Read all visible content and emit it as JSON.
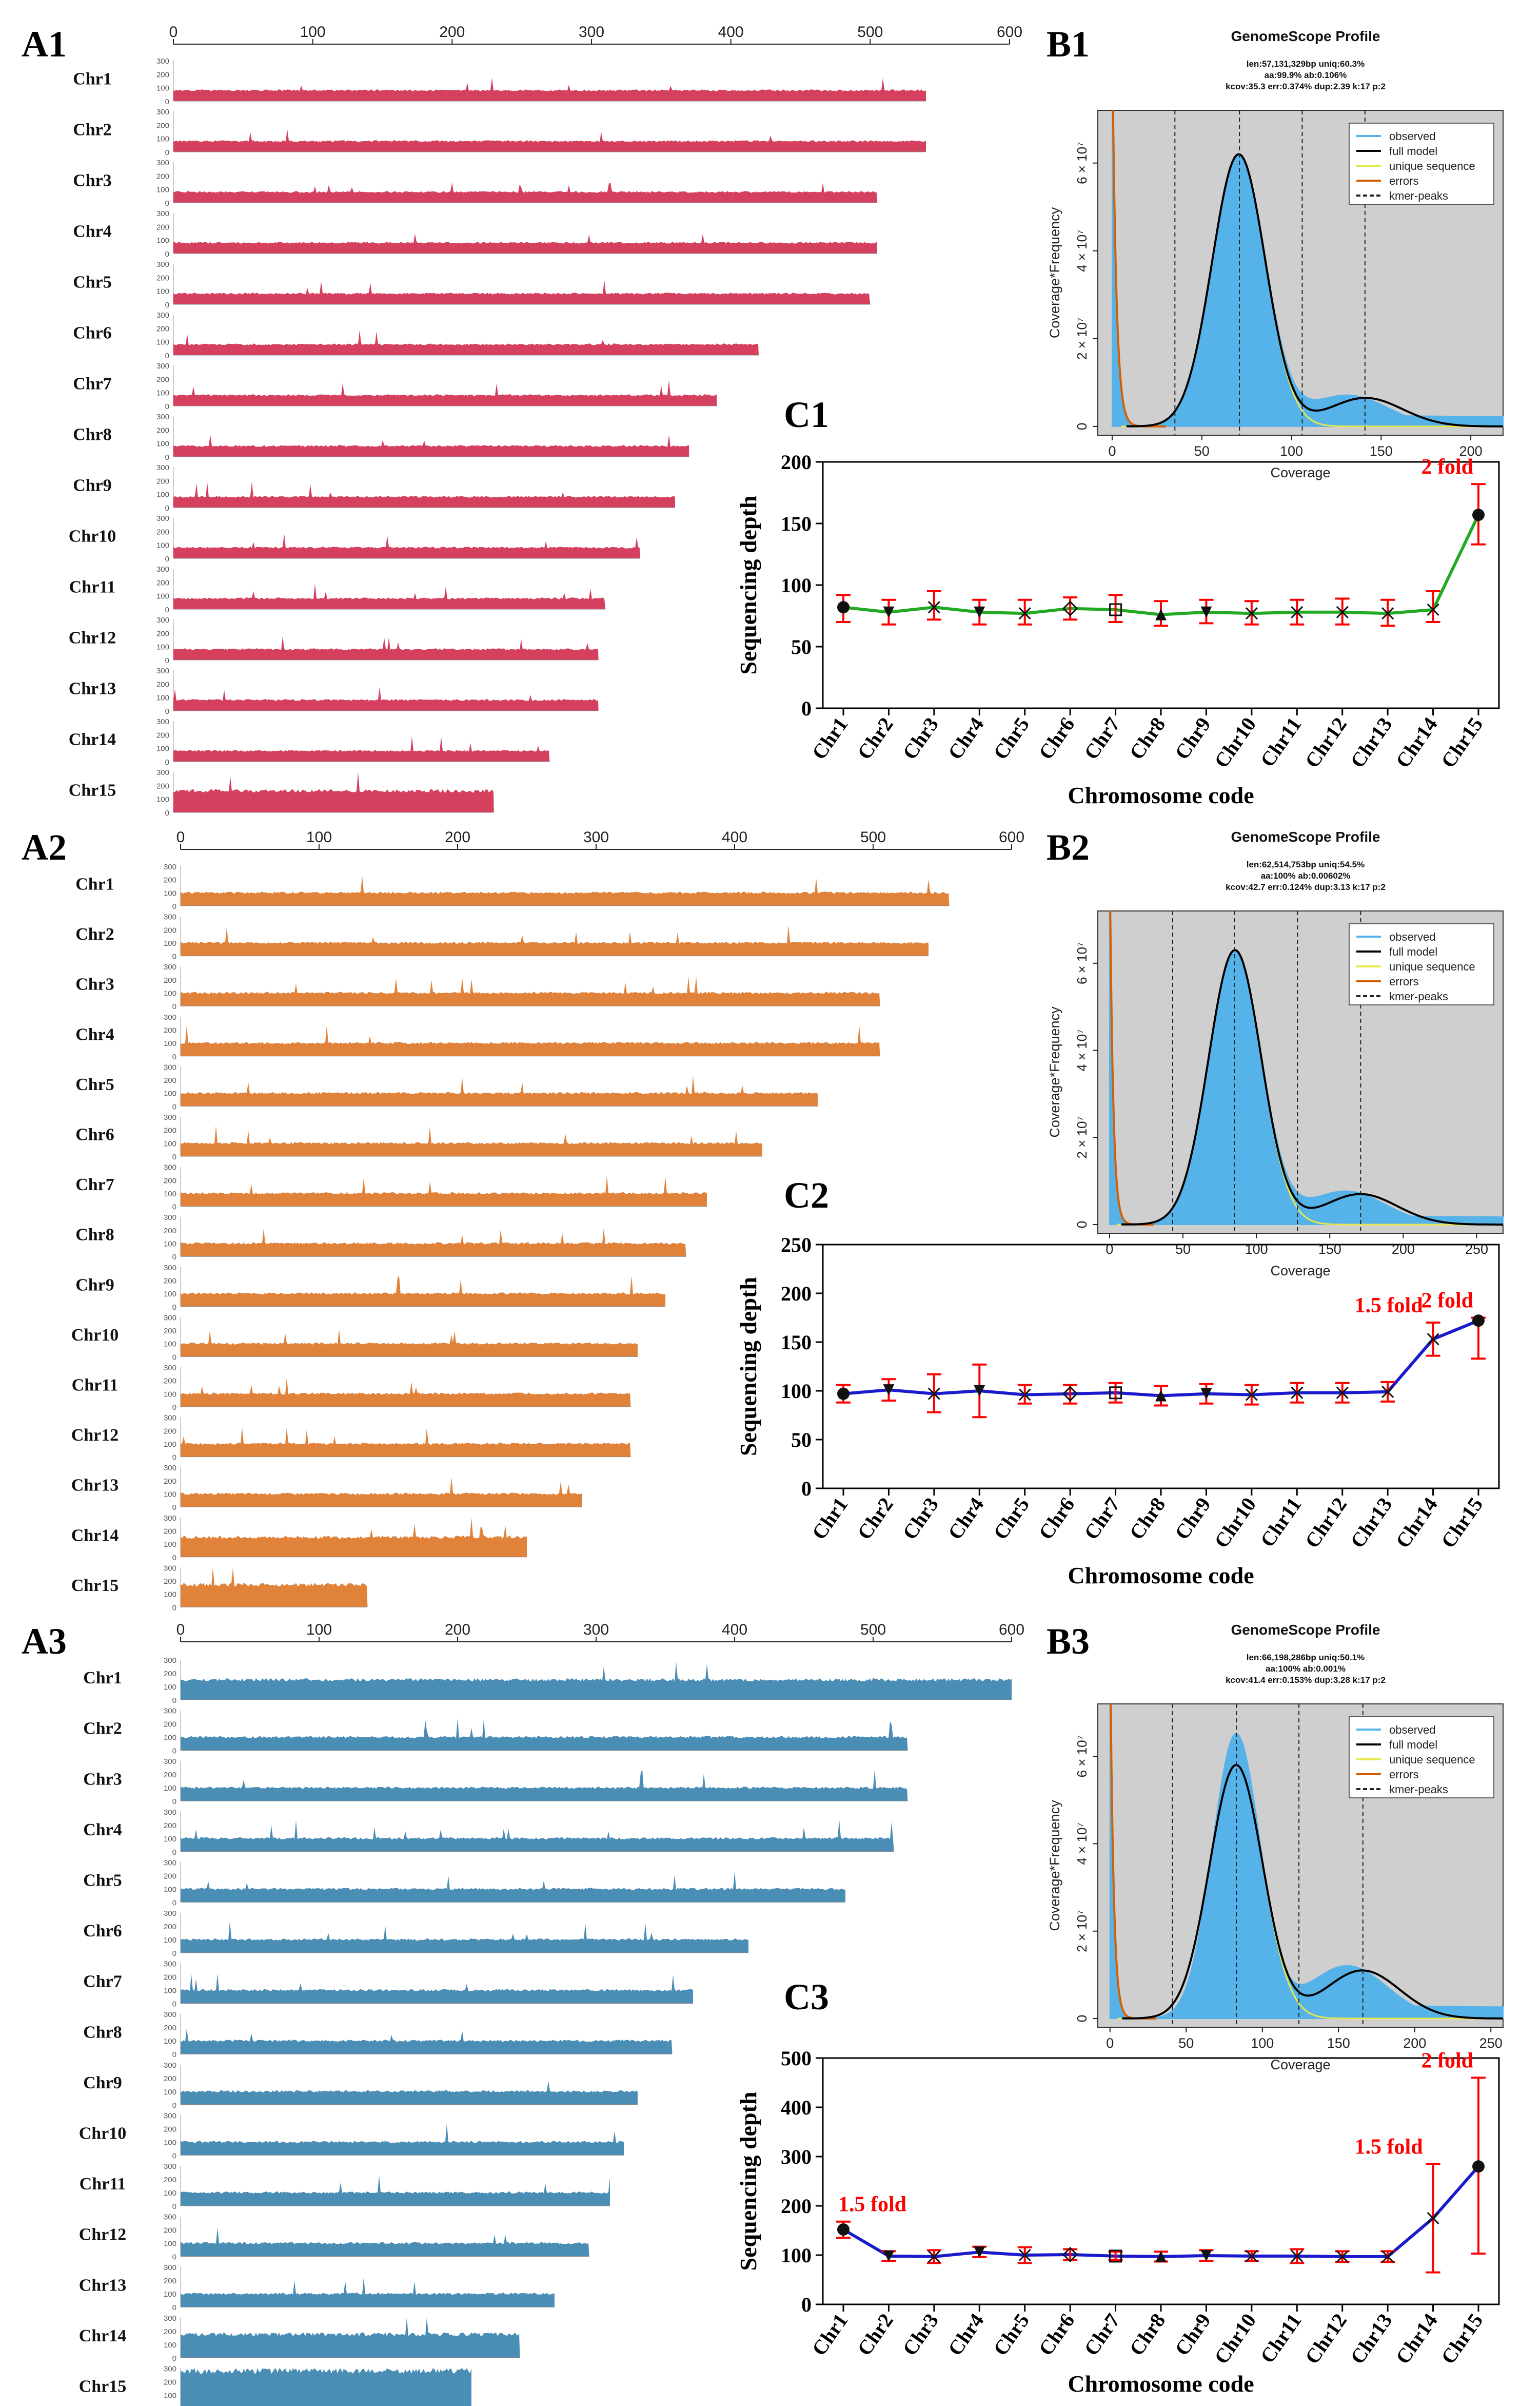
{
  "panel_labels": {
    "a1": "A1",
    "a2": "A2",
    "a3": "A3",
    "b1": "B1",
    "b2": "B2",
    "b3": "B3",
    "c1": "C1",
    "c2": "C2",
    "c3": "C3"
  },
  "colors": {
    "a1": "#d6405f",
    "a2": "#e0823a",
    "a3": "#4a8db5",
    "observed": "#56b3e9",
    "full_model": "#000000",
    "unique": "#e8e84a",
    "errors": "#d55e00",
    "gs_bg": "#cfcfcf",
    "c1_line": "#22aa22",
    "c2_line": "#1a1acc",
    "c3_line": "#1a1acc",
    "error_bar": "#ff0000",
    "fold_text": "#ff0000"
  },
  "chart_data": [
    {
      "id": "A1",
      "type": "bar",
      "title": "",
      "x_ticks": [
        "0",
        "100",
        "200",
        "300",
        "400",
        "500",
        "600"
      ],
      "xlim": [
        0,
        600
      ],
      "y_ticks": [
        "300",
        "200",
        "100",
        "0"
      ],
      "ylim": [
        0,
        300
      ],
      "categories": [
        "Chr1",
        "Chr2",
        "Chr3",
        "Chr4",
        "Chr5",
        "Chr6",
        "Chr7",
        "Chr8",
        "Chr9",
        "Chr10",
        "Chr11",
        "Chr12",
        "Chr13",
        "Chr14",
        "Chr15"
      ],
      "lengths": [
        540,
        540,
        505,
        505,
        500,
        420,
        390,
        370,
        360,
        335,
        310,
        305,
        305,
        270,
        230
      ],
      "depth": [
        80,
        80,
        80,
        80,
        80,
        80,
        80,
        80,
        80,
        80,
        80,
        80,
        80,
        80,
        160
      ]
    },
    {
      "id": "A2",
      "type": "bar",
      "x_ticks": [
        "0",
        "100",
        "200",
        "300",
        "400",
        "500",
        "600"
      ],
      "xlim": [
        0,
        600
      ],
      "y_ticks": [
        "300",
        "200",
        "100",
        "0"
      ],
      "ylim": [
        0,
        300
      ],
      "categories": [
        "Chr1",
        "Chr2",
        "Chr3",
        "Chr4",
        "Chr5",
        "Chr6",
        "Chr7",
        "Chr8",
        "Chr9",
        "Chr10",
        "Chr11",
        "Chr12",
        "Chr13",
        "Chr14",
        "Chr15"
      ],
      "lengths": [
        555,
        540,
        505,
        505,
        460,
        420,
        380,
        365,
        350,
        330,
        325,
        325,
        290,
        250,
        135
      ],
      "depth": [
        100,
        100,
        100,
        100,
        100,
        100,
        100,
        100,
        100,
        100,
        100,
        100,
        100,
        150,
        170
      ]
    },
    {
      "id": "A3",
      "type": "bar",
      "x_ticks": [
        "0",
        "100",
        "200",
        "300",
        "400",
        "500",
        "600"
      ],
      "xlim": [
        0,
        600
      ],
      "y_ticks": [
        "300",
        "200",
        "100",
        "0"
      ],
      "ylim": [
        0,
        300
      ],
      "categories": [
        "Chr1",
        "Chr2",
        "Chr3",
        "Chr4",
        "Chr5",
        "Chr6",
        "Chr7",
        "Chr8",
        "Chr9",
        "Chr10",
        "Chr11",
        "Chr12",
        "Chr13",
        "Chr14",
        "Chr15"
      ],
      "lengths": [
        600,
        525,
        525,
        515,
        480,
        410,
        370,
        355,
        330,
        320,
        310,
        295,
        270,
        245,
        210
      ],
      "depth": [
        150,
        100,
        100,
        100,
        100,
        100,
        100,
        100,
        100,
        100,
        100,
        100,
        100,
        175,
        280
      ]
    },
    {
      "id": "B1",
      "type": "line",
      "title": "GenomeScope Profile",
      "stats": [
        "len:57,131,329bp uniq:60.3%",
        "aa:99.9% ab:0.106%",
        "kcov:35.3 err:0.374% dup:2.39  k:17 p:2"
      ],
      "xlabel": "Coverage",
      "ylabel": "Coverage*Frequency",
      "xlim": [
        -8,
        218
      ],
      "ylim": [
        -2000000.0,
        72000000.0
      ],
      "x_ticks": [
        0,
        50,
        100,
        150,
        200
      ],
      "y_ticks": [
        {
          "v": 0,
          "label": "0"
        },
        {
          "v": 20000000.0,
          "label": "2 × 10⁷"
        },
        {
          "v": 40000000.0,
          "label": "4 × 10⁷"
        },
        {
          "v": 60000000.0,
          "label": "6 × 10⁷"
        }
      ],
      "legend": [
        "observed",
        "full model",
        "unique sequence",
        "errors",
        "kmer-peaks"
      ],
      "peak": 62000000.0,
      "het_peak": 6500000.0,
      "kcov": 35.3,
      "kmer_peaks": [
        35,
        71,
        106,
        141
      ],
      "tail": 2500000.0
    },
    {
      "id": "B2",
      "type": "line",
      "title": "GenomeScope Profile",
      "stats": [
        "len:62,514,753bp uniq:54.5%",
        "aa:100% ab:0.00602%",
        "kcov:42.7 err:0.124% dup:3.13  k:17 p:2"
      ],
      "xlabel": "Coverage",
      "ylabel": "Coverage*Frequency",
      "xlim": [
        -8,
        268
      ],
      "ylim": [
        -2000000.0,
        72000000.0
      ],
      "x_ticks": [
        0,
        50,
        100,
        150,
        200,
        250
      ],
      "y_ticks": [
        {
          "v": 0,
          "label": "0"
        },
        {
          "v": 20000000.0,
          "label": "2 × 10⁷"
        },
        {
          "v": 40000000.0,
          "label": "4 × 10⁷"
        },
        {
          "v": 60000000.0,
          "label": "6 × 10⁷"
        }
      ],
      "legend": [
        "observed",
        "full model",
        "unique sequence",
        "errors",
        "kmer-peaks"
      ],
      "peak": 63000000.0,
      "het_peak": 7000000.0,
      "kcov": 42.7,
      "kmer_peaks": [
        43,
        85,
        128,
        171
      ],
      "tail": 2000000.0
    },
    {
      "id": "B3",
      "type": "line",
      "title": "GenomeScope Profile",
      "stats": [
        "len:66,198,286bp uniq:50.1%",
        "aa:100% ab:0.001%",
        "kcov:41.4 err:0.153% dup:3.28  k:17 p:2"
      ],
      "xlabel": "Coverage",
      "ylabel": "Coverage*Frequency",
      "xlim": [
        -8,
        258
      ],
      "ylim": [
        -2000000.0,
        72000000.0
      ],
      "x_ticks": [
        0,
        50,
        100,
        150,
        200,
        250
      ],
      "y_ticks": [
        {
          "v": 0,
          "label": "0"
        },
        {
          "v": 20000000.0,
          "label": "2 × 10⁷"
        },
        {
          "v": 40000000.0,
          "label": "4 × 10⁷"
        },
        {
          "v": 60000000.0,
          "label": "6 × 10⁷"
        }
      ],
      "legend": [
        "observed",
        "full model",
        "unique sequence",
        "errors",
        "kmer-peaks"
      ],
      "peak": 58000000.0,
      "obs_peak": 65000000.0,
      "het_peak": 11000000.0,
      "kcov": 41.4,
      "kmer_peaks": [
        41,
        83,
        124,
        166
      ],
      "tail": 3000000.0
    },
    {
      "id": "C1",
      "type": "line",
      "xlabel": "Chromosome code",
      "ylabel": "Sequencing depth",
      "ylim": [
        0,
        200
      ],
      "y_ticks": [
        0,
        50,
        100,
        150,
        200
      ],
      "categories": [
        "Chr1",
        "Chr2",
        "Chr3",
        "Chr4",
        "Chr5",
        "Chr6",
        "Chr7",
        "Chr8",
        "Chr9",
        "Chr10",
        "Chr11",
        "Chr12",
        "Chr13",
        "Chr14",
        "Chr15"
      ],
      "values": [
        82,
        78,
        82,
        78,
        77,
        81,
        80,
        76,
        78,
        77,
        78,
        78,
        77,
        80,
        157
      ],
      "err_low": [
        70,
        68,
        72,
        68,
        68,
        72,
        70,
        67,
        69,
        68,
        68,
        68,
        67,
        70,
        133
      ],
      "err_high": [
        92,
        88,
        95,
        88,
        88,
        90,
        92,
        87,
        88,
        87,
        88,
        89,
        88,
        95,
        182
      ],
      "annotations": [
        {
          "text": "2 fold",
          "index": 14
        }
      ]
    },
    {
      "id": "C2",
      "type": "line",
      "xlabel": "Chromosome code",
      "ylabel": "Sequencing depth",
      "ylim": [
        0,
        250
      ],
      "y_ticks": [
        0,
        50,
        100,
        150,
        200,
        250
      ],
      "categories": [
        "Chr1",
        "Chr2",
        "Chr3",
        "Chr4",
        "Chr5",
        "Chr6",
        "Chr7",
        "Chr8",
        "Chr9",
        "Chr10",
        "Chr11",
        "Chr12",
        "Chr13",
        "Chr14",
        "Chr15"
      ],
      "values": [
        97,
        101,
        97,
        100,
        96,
        97,
        98,
        95,
        97,
        96,
        98,
        98,
        99,
        153,
        172
      ],
      "err_low": [
        88,
        90,
        78,
        73,
        87,
        87,
        88,
        85,
        87,
        86,
        88,
        88,
        89,
        136,
        133
      ],
      "err_high": [
        106,
        112,
        117,
        127,
        106,
        106,
        108,
        105,
        107,
        106,
        108,
        108,
        109,
        170,
        175
      ],
      "annotations": [
        {
          "text": "2 fold",
          "index": 14
        },
        {
          "text": "1.5 fold",
          "index": 13
        }
      ]
    },
    {
      "id": "C3",
      "type": "line",
      "xlabel": "Chromosome code",
      "ylabel": "Sequencing depth",
      "ylim": [
        0,
        500
      ],
      "y_ticks": [
        0,
        100,
        200,
        300,
        400,
        500
      ],
      "categories": [
        "Chr1",
        "Chr2",
        "Chr3",
        "Chr4",
        "Chr5",
        "Chr6",
        "Chr7",
        "Chr8",
        "Chr9",
        "Chr10",
        "Chr11",
        "Chr12",
        "Chr13",
        "Chr14",
        "Chr15"
      ],
      "values": [
        152,
        98,
        97,
        106,
        100,
        101,
        98,
        97,
        99,
        98,
        98,
        97,
        97,
        175,
        280
      ],
      "err_low": [
        135,
        88,
        84,
        96,
        84,
        90,
        90,
        87,
        88,
        88,
        84,
        86,
        86,
        65,
        103
      ],
      "err_high": [
        168,
        108,
        110,
        117,
        116,
        112,
        107,
        107,
        110,
        108,
        112,
        108,
        108,
        285,
        460
      ],
      "annotations": [
        {
          "text": "1.5 fold",
          "index": 0
        },
        {
          "text": "1.5 fold",
          "index": 13
        },
        {
          "text": "2 fold",
          "index": 14
        }
      ]
    }
  ]
}
